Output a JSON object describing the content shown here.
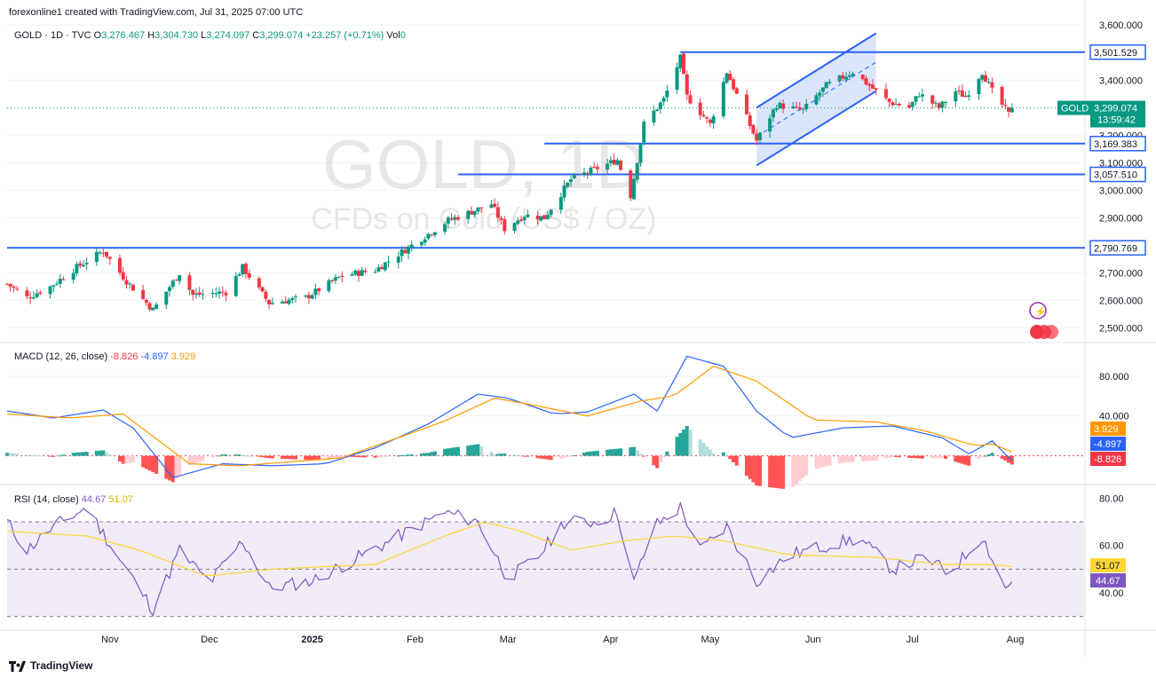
{
  "header": {
    "credit": "forexonline1 created with TradingView.com, Jul 31, 2025 07:00 UTC"
  },
  "symbol_bar": {
    "name": "GOLD · 1D · TVC",
    "open_label": "O",
    "open": "3,276.467",
    "high_label": "H",
    "high": "3,304.730",
    "low_label": "L",
    "low": "3,274.097",
    "close_label": "C",
    "close": "3,299.074",
    "change": "+23.257 (+0.71%)",
    "vol_label": "Vol",
    "vol": "0"
  },
  "watermark": {
    "symbol": "GOLD, 1D",
    "description": "CFDs on Gold (US$ / OZ)"
  },
  "price_badge": {
    "symbol": "GOLD",
    "price": "3,299.074",
    "countdown": "13:59:42"
  },
  "footer": {
    "brand": "TradingView"
  },
  "colors": {
    "up": "#089981",
    "down": "#f23645",
    "level_line": "#2962ff",
    "channel_fill": "#bbd0f7",
    "macd_line": "#2962ff",
    "signal_line": "#ff9800",
    "rsi_line": "#7e57c2",
    "rsi_ma": "#fdd835",
    "rsi_band": "#ede7f6"
  },
  "chart_data": [
    {
      "type": "candlestick",
      "pane": "price",
      "ylim": [
        2450,
        3620
      ],
      "y_ticks": [
        "3,600.000",
        "3,400.000",
        "3,200.000",
        "3,100.000",
        "3,000.000",
        "2,900.000",
        "2,800.000",
        "2,700.000",
        "2,600.000",
        "2,500.000"
      ],
      "y_tick_values": [
        3600,
        3400,
        3200,
        3100,
        3000,
        2900,
        2800,
        2700,
        2600,
        2500
      ],
      "x_ticks": [
        "Nov",
        "Dec",
        "2025",
        "Feb",
        "Mar",
        "Apr",
        "May",
        "Jun",
        "Jul",
        "Aug"
      ],
      "x_tick_dates": [
        "2024-11-01",
        "2024-12-01",
        "2025-01-01",
        "2025-02-01",
        "2025-03-01",
        "2025-04-01",
        "2025-05-01",
        "2025-06-01",
        "2025-07-01",
        "2025-08-01"
      ],
      "date_range": [
        "2024-10-01",
        "2025-08-22"
      ],
      "waypoints": [
        [
          "2024-10-01",
          2660
        ],
        [
          "2024-10-07",
          2610
        ],
        [
          "2024-10-14",
          2650
        ],
        [
          "2024-10-22",
          2720
        ],
        [
          "2024-10-30",
          2780
        ],
        [
          "2024-11-06",
          2670
        ],
        [
          "2024-11-14",
          2565
        ],
        [
          "2024-11-22",
          2700
        ],
        [
          "2024-11-26",
          2620
        ],
        [
          "2024-12-06",
          2630
        ],
        [
          "2024-12-11",
          2720
        ],
        [
          "2024-12-19",
          2590
        ],
        [
          "2024-12-30",
          2610
        ],
        [
          "2025-01-10",
          2690
        ],
        [
          "2025-01-20",
          2710
        ],
        [
          "2025-01-31",
          2800
        ],
        [
          "2025-02-11",
          2890
        ],
        [
          "2025-02-24",
          2950
        ],
        [
          "2025-02-28",
          2860
        ],
        [
          "2025-03-06",
          2910
        ],
        [
          "2025-03-12",
          2900
        ],
        [
          "2025-03-20",
          3040
        ],
        [
          "2025-03-28",
          3080
        ],
        [
          "2025-04-03",
          3110
        ],
        [
          "2025-04-07",
          2980
        ],
        [
          "2025-04-11",
          3240
        ],
        [
          "2025-04-17",
          3330
        ],
        [
          "2025-04-22",
          3480
        ],
        [
          "2025-04-24",
          3340
        ],
        [
          "2025-05-01",
          3240
        ],
        [
          "2025-05-06",
          3430
        ],
        [
          "2025-05-15",
          3180
        ],
        [
          "2025-05-21",
          3310
        ],
        [
          "2025-05-29",
          3290
        ],
        [
          "2025-06-05",
          3380
        ],
        [
          "2025-06-13",
          3430
        ],
        [
          "2025-06-19",
          3370
        ],
        [
          "2025-06-24",
          3320
        ],
        [
          "2025-06-30",
          3300
        ],
        [
          "2025-07-03",
          3350
        ],
        [
          "2025-07-09",
          3300
        ],
        [
          "2025-07-14",
          3360
        ],
        [
          "2025-07-17",
          3340
        ],
        [
          "2025-07-22",
          3430
        ],
        [
          "2025-07-25",
          3360
        ],
        [
          "2025-07-30",
          3276
        ],
        [
          "2025-07-31",
          3299
        ]
      ],
      "levels": [
        {
          "value": 3501.529,
          "label": "3,501.529",
          "from": "2025-04-22"
        },
        {
          "value": 3169.383,
          "label": "3,169.383",
          "from": "2025-03-12"
        },
        {
          "value": 3057.51,
          "label": "3,057.510",
          "from": "2025-02-14"
        },
        {
          "value": 2790.769,
          "label": "2,790.769",
          "from": "2024-10-01"
        }
      ],
      "channel": {
        "upper": [
          [
            "2025-05-15",
            3300
          ],
          [
            "2025-06-20",
            3570
          ]
        ],
        "lower": [
          [
            "2025-05-15",
            3090
          ],
          [
            "2025-06-20",
            3360
          ]
        ],
        "mid": [
          [
            "2025-05-15",
            3195
          ],
          [
            "2025-06-20",
            3465
          ]
        ]
      },
      "last_price": 3299.074
    },
    {
      "type": "line",
      "pane": "macd",
      "title": "MACD (12, 26, close)",
      "values_label": {
        "histogram": "-8.826",
        "macd": "-4.897",
        "signal": "3.929"
      },
      "ylim": [
        -28,
        112
      ],
      "y_ticks": [
        "80.000",
        "40.000"
      ],
      "y_tick_values": [
        80,
        40
      ],
      "zero_line": 0,
      "macd_waypoints": [
        [
          "2024-10-01",
          45
        ],
        [
          "2024-10-15",
          38
        ],
        [
          "2024-10-30",
          46
        ],
        [
          "2024-11-08",
          28
        ],
        [
          "2024-11-20",
          -22
        ],
        [
          "2024-12-05",
          -8
        ],
        [
          "2024-12-20",
          -10
        ],
        [
          "2025-01-05",
          -8
        ],
        [
          "2025-01-20",
          8
        ],
        [
          "2025-02-05",
          32
        ],
        [
          "2025-02-20",
          62
        ],
        [
          "2025-03-01",
          58
        ],
        [
          "2025-03-15",
          42
        ],
        [
          "2025-03-25",
          44
        ],
        [
          "2025-04-08",
          62
        ],
        [
          "2025-04-15",
          45
        ],
        [
          "2025-04-24",
          100
        ],
        [
          "2025-05-05",
          90
        ],
        [
          "2025-05-15",
          45
        ],
        [
          "2025-05-25",
          18
        ],
        [
          "2025-06-10",
          28
        ],
        [
          "2025-06-25",
          30
        ],
        [
          "2025-07-10",
          18
        ],
        [
          "2025-07-18",
          2
        ],
        [
          "2025-07-25",
          15
        ],
        [
          "2025-07-31",
          -4.897
        ]
      ],
      "signal_waypoints": [
        [
          "2024-10-01",
          42
        ],
        [
          "2024-10-20",
          38
        ],
        [
          "2024-11-05",
          42
        ],
        [
          "2024-11-25",
          -8
        ],
        [
          "2024-12-10",
          -10
        ],
        [
          "2025-01-10",
          -2
        ],
        [
          "2025-02-10",
          35
        ],
        [
          "2025-02-25",
          58
        ],
        [
          "2025-03-10",
          50
        ],
        [
          "2025-03-25",
          40
        ],
        [
          "2025-04-10",
          55
        ],
        [
          "2025-04-20",
          60
        ],
        [
          "2025-05-02",
          90
        ],
        [
          "2025-05-15",
          75
        ],
        [
          "2025-06-01",
          36
        ],
        [
          "2025-06-20",
          34
        ],
        [
          "2025-07-05",
          25
        ],
        [
          "2025-07-20",
          10
        ],
        [
          "2025-07-25",
          12
        ],
        [
          "2025-07-31",
          3.929
        ]
      ]
    },
    {
      "type": "line",
      "pane": "rsi",
      "title": "RSI (14, close)",
      "values_label": {
        "rsi": "44.67",
        "ma": "51.07"
      },
      "ylim": [
        25,
        85
      ],
      "y_ticks": [
        "80.00",
        "60.00",
        "40.00"
      ],
      "y_tick_values": [
        80,
        60,
        40
      ],
      "bands": [
        70,
        50,
        30
      ],
      "rsi_waypoints": [
        [
          "2024-10-01",
          70
        ],
        [
          "2024-10-07",
          58
        ],
        [
          "2024-10-15",
          68
        ],
        [
          "2024-10-25",
          76
        ],
        [
          "2024-11-05",
          52
        ],
        [
          "2024-11-14",
          33
        ],
        [
          "2024-11-22",
          58
        ],
        [
          "2024-12-01",
          44
        ],
        [
          "2024-12-11",
          62
        ],
        [
          "2024-12-19",
          42
        ],
        [
          "2025-01-01",
          45
        ],
        [
          "2025-01-15",
          55
        ],
        [
          "2025-01-30",
          66
        ],
        [
          "2025-02-10",
          74
        ],
        [
          "2025-02-20",
          70
        ],
        [
          "2025-03-01",
          46
        ],
        [
          "2025-03-10",
          55
        ],
        [
          "2025-03-18",
          70
        ],
        [
          "2025-03-28",
          70
        ],
        [
          "2025-04-03",
          74
        ],
        [
          "2025-04-08",
          44
        ],
        [
          "2025-04-14",
          68
        ],
        [
          "2025-04-22",
          76
        ],
        [
          "2025-04-28",
          58
        ],
        [
          "2025-05-06",
          68
        ],
        [
          "2025-05-15",
          45
        ],
        [
          "2025-05-25",
          56
        ],
        [
          "2025-06-05",
          60
        ],
        [
          "2025-06-15",
          63
        ],
        [
          "2025-06-25",
          50
        ],
        [
          "2025-07-05",
          55
        ],
        [
          "2025-07-12",
          48
        ],
        [
          "2025-07-22",
          64
        ],
        [
          "2025-07-29",
          42
        ],
        [
          "2025-07-31",
          44.67
        ]
      ],
      "ma_waypoints": [
        [
          "2024-10-01",
          66
        ],
        [
          "2024-10-25",
          64
        ],
        [
          "2024-11-10",
          58
        ],
        [
          "2024-11-30",
          47
        ],
        [
          "2024-12-20",
          50
        ],
        [
          "2025-01-20",
          52
        ],
        [
          "2025-02-10",
          64
        ],
        [
          "2025-02-22",
          70
        ],
        [
          "2025-03-05",
          66
        ],
        [
          "2025-03-20",
          58
        ],
        [
          "2025-04-05",
          62
        ],
        [
          "2025-04-20",
          64
        ],
        [
          "2025-05-05",
          62
        ],
        [
          "2025-05-25",
          56
        ],
        [
          "2025-06-20",
          55
        ],
        [
          "2025-07-10",
          52
        ],
        [
          "2025-07-25",
          52
        ],
        [
          "2025-07-31",
          51.07
        ]
      ]
    }
  ]
}
